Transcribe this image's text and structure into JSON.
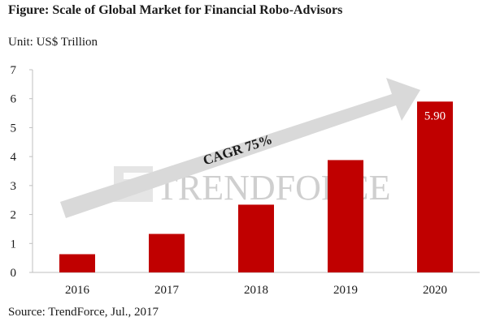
{
  "title": "Figure: Scale of Global Market for Financial Robo-Advisors",
  "unit": "Unit: US$ Trillion",
  "source": "Source: TrendForce, Jul., 2017",
  "watermark": "TRENDFORCE",
  "annotation": "CAGR 75%",
  "colors": {
    "bar": "#c00000",
    "arrow": "#d9d9d9",
    "axis": "#bfbfbf",
    "watermark": "#cfcfcf"
  },
  "chart_data": {
    "type": "bar",
    "title": "Figure: Scale of Global Market for Financial Robo-Advisors",
    "xlabel": "",
    "ylabel": "Unit: US$ Trillion",
    "categories": [
      "2016",
      "2017",
      "2018",
      "2019",
      "2020"
    ],
    "values": [
      0.63,
      1.33,
      2.34,
      3.88,
      5.9
    ],
    "data_labels": [
      "",
      "",
      "",
      "",
      "5.90"
    ],
    "ylim": [
      0,
      7
    ],
    "yticks": [
      "0",
      "1",
      "2",
      "3",
      "4",
      "5",
      "6",
      "7"
    ],
    "grid": false,
    "legend": "none"
  }
}
